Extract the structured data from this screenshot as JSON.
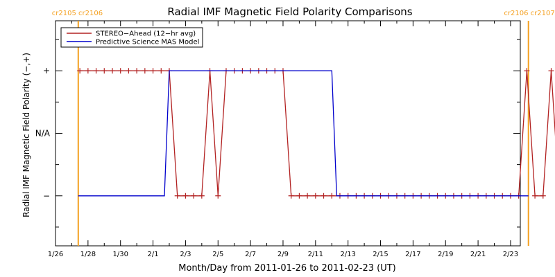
{
  "chart_data": {
    "type": "line",
    "title": "Radial IMF Magnetic Field Polarity Comparisons",
    "xlabel": "Month/Day from 2011-01-26 to 2011-02-23 (UT)",
    "ylabel": "Radial IMF Magnetic Field Polarity (−,+)",
    "x_start": "2011-01-26",
    "x_end": "2011-02-23",
    "xlim_days": [
      0,
      28.6
    ],
    "ylim": [
      -1.8,
      1.8
    ],
    "x_ticks": [
      {
        "day": 0,
        "label": "1/26"
      },
      {
        "day": 2,
        "label": "1/28"
      },
      {
        "day": 4,
        "label": "1/30"
      },
      {
        "day": 6,
        "label": "2/1"
      },
      {
        "day": 8,
        "label": "2/3"
      },
      {
        "day": 10,
        "label": "2/5"
      },
      {
        "day": 12,
        "label": "2/7"
      },
      {
        "day": 14,
        "label": "2/9"
      },
      {
        "day": 16,
        "label": "2/11"
      },
      {
        "day": 18,
        "label": "2/13"
      },
      {
        "day": 20,
        "label": "2/15"
      },
      {
        "day": 22,
        "label": "2/17"
      },
      {
        "day": 24,
        "label": "2/19"
      },
      {
        "day": 26,
        "label": "2/21"
      },
      {
        "day": 28,
        "label": "2/23"
      }
    ],
    "y_ticks": [
      {
        "value": 1,
        "label": "+"
      },
      {
        "value": 0,
        "label": "N/A"
      },
      {
        "value": -1,
        "label": "−"
      }
    ],
    "carrington_markers": [
      {
        "day": 1.4,
        "label": "cr2105 cr2106",
        "anchor": "left"
      },
      {
        "day": 29.1,
        "label": "cr2106 cr2107",
        "anchor": "right"
      }
    ],
    "legend": {
      "position": "top-left"
    },
    "series": [
      {
        "name": "STEREO−Ahead (12−hr avg)",
        "color": "#b22222",
        "markers": "+",
        "start_day": 1.5,
        "step_days": 0.5,
        "values": [
          1,
          1,
          1,
          1,
          1,
          1,
          1,
          1,
          1,
          1,
          1,
          1,
          -1,
          -1,
          -1,
          -1,
          1,
          -1,
          1,
          1,
          1,
          1,
          1,
          1,
          1,
          1,
          -1,
          -1,
          -1,
          -1,
          -1,
          -1,
          -1,
          -1,
          -1,
          -1,
          -1,
          -1,
          -1,
          -1,
          -1,
          -1,
          -1,
          -1,
          -1,
          -1,
          -1,
          -1,
          -1,
          -1,
          -1,
          -1,
          -1,
          -1,
          -1,
          1,
          -1,
          -1,
          1,
          -1,
          -1
        ]
      },
      {
        "name": "Predictive Science MAS Model",
        "color": "#0000cc",
        "points": [
          [
            1.4,
            -1
          ],
          [
            6.7,
            -1
          ],
          [
            7.0,
            1
          ],
          [
            17.0,
            1
          ],
          [
            17.3,
            -1
          ],
          [
            29.1,
            -1
          ]
        ]
      }
    ]
  }
}
